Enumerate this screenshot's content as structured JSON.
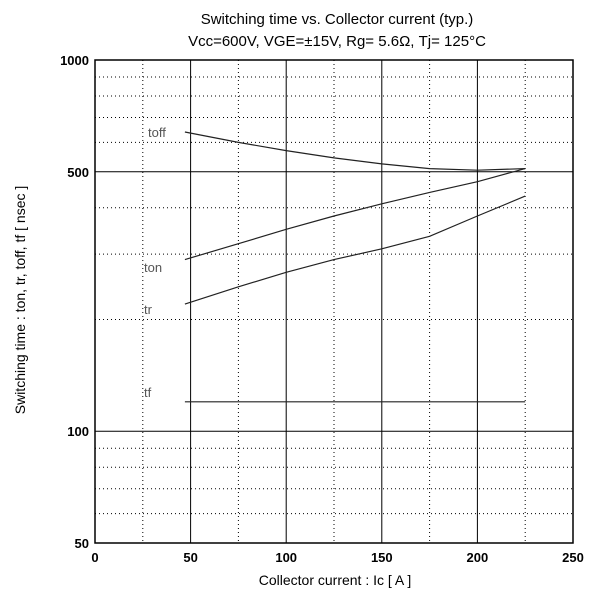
{
  "chart_data": {
    "type": "line",
    "title": "Switching time  vs.  Collector current  (typ.)",
    "subtitle": "Vcc=600V, VGE=±15V, Rg= 5.6Ω, Tj= 125°C",
    "xlabel": "Collector current  :  Ic  [ A ]",
    "ylabel": "Switching time  :  ton, tr, toff, tf  [ nsec ]",
    "xlim": [
      0,
      250
    ],
    "ylim": [
      50,
      1000
    ],
    "yscale": "log",
    "grid": true,
    "x_ticks": [
      0,
      50,
      100,
      150,
      200,
      250
    ],
    "y_ticks": [
      {
        "value": 50,
        "label": "50"
      },
      {
        "value": 100,
        "label": "100"
      },
      {
        "value": 500,
        "label": "500"
      },
      {
        "value": 1000,
        "label": "1000"
      }
    ],
    "series": [
      {
        "name": "toff",
        "x": [
          47,
          75,
          100,
          125,
          150,
          175,
          200,
          225
        ],
        "y": [
          640,
          600,
          570,
          545,
          525,
          510,
          505,
          510
        ]
      },
      {
        "name": "ton",
        "x": [
          47,
          75,
          100,
          125,
          150,
          175,
          200,
          225
        ],
        "y": [
          290,
          320,
          350,
          380,
          410,
          440,
          470,
          510
        ]
      },
      {
        "name": "tr",
        "x": [
          47,
          75,
          100,
          125,
          150,
          175,
          200,
          225
        ],
        "y": [
          220,
          245,
          268,
          290,
          310,
          335,
          380,
          430
        ]
      },
      {
        "name": "tf",
        "x": [
          47,
          225
        ],
        "y": [
          120,
          120
        ]
      }
    ]
  }
}
